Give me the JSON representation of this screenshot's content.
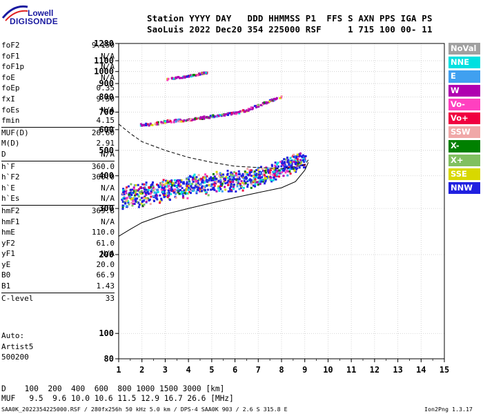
{
  "logo": {
    "line1": "Lowell",
    "line2": "DIGISONDE"
  },
  "header": {
    "line1": "Station YYYY DAY   DDD HHMMSS P1  FFS S AXN PPS IGA PS",
    "line2": "SaoLuis 2022 Dec20 354 225000 RSF     1 715 100 00- 11"
  },
  "params": [
    [
      {
        "label": "foF2",
        "value": "9.150"
      },
      {
        "label": "foF1",
        "value": "N/A"
      },
      {
        "label": "foF1p",
        "value": "N/A"
      },
      {
        "label": "foE",
        "value": "N/A"
      },
      {
        "label": "foEp",
        "value": "0.35"
      },
      {
        "label": "fxI",
        "value": "9.50"
      },
      {
        "label": "foEs",
        "value": "N/A"
      },
      {
        "label": "fmin",
        "value": "4.15"
      }
    ],
    [
      {
        "label": "MUF(D)",
        "value": "26.60"
      },
      {
        "label": "M(D)",
        "value": "2.91"
      },
      {
        "label": "D",
        "value": "N/A"
      }
    ],
    [
      {
        "label": "h`F",
        "value": "360.0"
      },
      {
        "label": "h`F2",
        "value": "360.0"
      },
      {
        "label": "h`E",
        "value": "N/A"
      },
      {
        "label": "h`Es",
        "value": "N/A"
      }
    ],
    [
      {
        "label": "hmF2",
        "value": "369.8"
      },
      {
        "label": "hmF1",
        "value": "N/A"
      },
      {
        "label": "hmE",
        "value": "110.0"
      },
      {
        "label": "yF2",
        "value": "61.0"
      },
      {
        "label": "yF1",
        "value": "N/A"
      },
      {
        "label": "yE",
        "value": "20.0"
      },
      {
        "label": "B0",
        "value": "66.9"
      },
      {
        "label": "B1",
        "value": "1.43"
      }
    ],
    [
      {
        "label": "C-level",
        "value": "33"
      }
    ]
  ],
  "auto": {
    "line1": "Auto:",
    "line2": "Artist5",
    "line3": "500200"
  },
  "legend": [
    {
      "label": "NoVal",
      "color": "#a0a0a0"
    },
    {
      "label": "NNE",
      "color": "#00e0e0"
    },
    {
      "label": "E",
      "color": "#40a0f0"
    },
    {
      "label": "W",
      "color": "#b000b0"
    },
    {
      "label": "Vo-",
      "color": "#ff40c0"
    },
    {
      "label": "Vo+",
      "color": "#f00040"
    },
    {
      "label": "SSW",
      "color": "#f0a8a8"
    },
    {
      "label": "X-",
      "color": "#008000"
    },
    {
      "label": "X+",
      "color": "#80c060"
    },
    {
      "label": "SSE",
      "color": "#d8d800"
    },
    {
      "label": "NNW",
      "color": "#2020e0"
    }
  ],
  "muf_table": {
    "line1": "D    100  200  400  600  800 1000 1500 3000 [km]",
    "line2": "MUF   9.5  9.6 10.0 10.6 11.5 12.9 16.7 26.6 [MHz]"
  },
  "footer": {
    "left": "SAA0K_2022354225000.RSF / 280fx256h 50 kHz 5.0 km / DPS-4 SAA0K 903 / 2.6 S 315.8 E",
    "right": "Ion2Png 1.3.17"
  },
  "chart_data": {
    "type": "scatter",
    "title": "",
    "xlabel": "",
    "ylabel": "",
    "xlim": [
      1,
      15
    ],
    "ylim": [
      80,
      1280
    ],
    "y_scale": "log",
    "x_ticks": [
      1,
      2,
      3,
      4,
      5,
      6,
      7,
      8,
      9,
      10,
      11,
      12,
      13,
      14,
      15
    ],
    "y_ticks": [
      80,
      100,
      200,
      300,
      400,
      500,
      600,
      700,
      800,
      900,
      1000,
      1100,
      1280
    ],
    "grid": true,
    "series": [
      {
        "name": "F-trace",
        "color": "#2020e0",
        "points": [
          [
            1.1,
            320
          ],
          [
            1.5,
            330
          ],
          [
            2.0,
            335
          ],
          [
            2.5,
            340
          ],
          [
            3.0,
            350
          ],
          [
            3.5,
            350
          ],
          [
            4.0,
            355
          ],
          [
            4.5,
            360
          ],
          [
            5.0,
            365
          ],
          [
            5.5,
            370
          ],
          [
            6.0,
            375
          ],
          [
            6.5,
            380
          ],
          [
            7.0,
            390
          ],
          [
            7.5,
            400
          ],
          [
            8.0,
            420
          ],
          [
            8.5,
            440
          ],
          [
            9.0,
            450
          ]
        ]
      },
      {
        "name": "F-2hop",
        "color": "#b000b0",
        "points": [
          [
            1.9,
            630
          ],
          [
            2.5,
            635
          ],
          [
            3.0,
            650
          ],
          [
            3.5,
            655
          ],
          [
            4.0,
            660
          ],
          [
            4.5,
            670
          ],
          [
            5.0,
            680
          ],
          [
            5.5,
            690
          ],
          [
            6.0,
            700
          ],
          [
            6.5,
            720
          ],
          [
            7.0,
            750
          ],
          [
            7.5,
            780
          ],
          [
            8.0,
            810
          ]
        ]
      },
      {
        "name": "F-3hop",
        "color": "#b000b0",
        "points": [
          [
            3.0,
            940
          ],
          [
            3.5,
            955
          ],
          [
            4.0,
            970
          ],
          [
            4.5,
            990
          ],
          [
            4.8,
            1000
          ]
        ]
      }
    ],
    "profile_curves": [
      {
        "name": "solid",
        "points": [
          [
            1.0,
            235
          ],
          [
            1.5,
            250
          ],
          [
            2.0,
            265
          ],
          [
            3.0,
            285
          ],
          [
            4.0,
            300
          ],
          [
            5.0,
            315
          ],
          [
            6.0,
            330
          ],
          [
            7.0,
            345
          ],
          [
            8.0,
            360
          ],
          [
            8.6,
            380
          ],
          [
            9.0,
            420
          ],
          [
            9.15,
            450
          ]
        ]
      },
      {
        "name": "dashed",
        "points": [
          [
            1.0,
            630
          ],
          [
            1.5,
            580
          ],
          [
            2.0,
            540
          ],
          [
            3.0,
            500
          ],
          [
            4.0,
            470
          ],
          [
            5.0,
            450
          ],
          [
            6.0,
            435
          ],
          [
            7.0,
            430
          ],
          [
            8.0,
            425
          ],
          [
            9.0,
            440
          ],
          [
            9.15,
            460
          ]
        ]
      }
    ]
  }
}
